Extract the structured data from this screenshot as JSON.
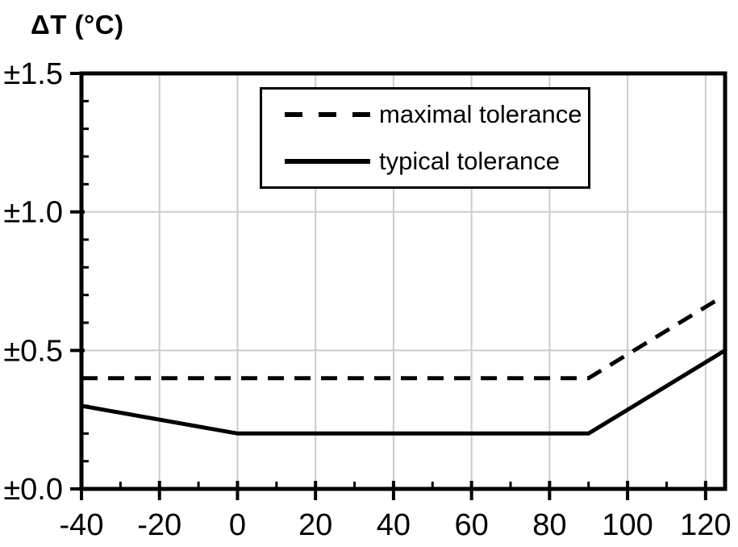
{
  "title": "ΔT (°C)",
  "chart_data": {
    "type": "line",
    "title": "ΔT (°C)",
    "xlabel": "",
    "ylabel": "ΔT (°C)",
    "xlim": [
      -40,
      125
    ],
    "ylim": [
      0,
      1.5
    ],
    "x_major_ticks": [
      -40,
      -20,
      0,
      20,
      40,
      60,
      80,
      100,
      120
    ],
    "x_tick_labels": [
      "-40",
      "-20",
      "0",
      "20",
      "40",
      "60",
      "80",
      "100",
      "120"
    ],
    "x_minor_step": 10,
    "y_major_ticks": [
      0,
      0.5,
      1,
      1.5
    ],
    "y_tick_labels": [
      "±0.0",
      "±0.5",
      "±1.0",
      "±1.5"
    ],
    "y_minor_step": 0.1,
    "grid": true,
    "gridline_color": "#cccccc",
    "line_color": "#000000",
    "background_color": "#ffffff",
    "legend_position": "top-center-inside",
    "legend_entries": [
      "maximal tolerance",
      "typical tolerance"
    ],
    "series": [
      {
        "name": "maximal tolerance",
        "style": "dashed",
        "points": [
          [
            -40,
            0.4
          ],
          [
            90,
            0.4
          ],
          [
            125,
            0.7
          ]
        ]
      },
      {
        "name": "typical tolerance",
        "style": "solid",
        "points": [
          [
            -40,
            0.3
          ],
          [
            0,
            0.2
          ],
          [
            90,
            0.2
          ],
          [
            125,
            0.5
          ]
        ]
      }
    ]
  }
}
